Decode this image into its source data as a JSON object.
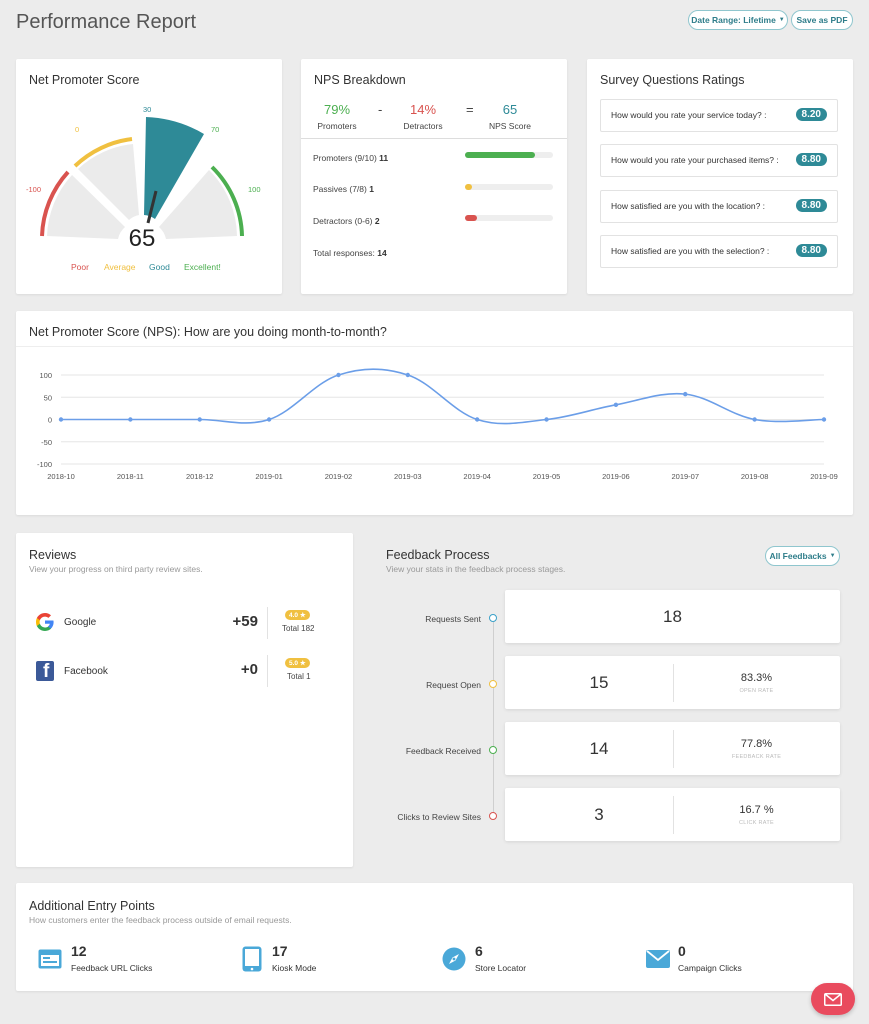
{
  "header": {
    "title": "Performance Report",
    "date_range_label": "Date Range: Lifetime",
    "save_pdf_label": "Save as PDF"
  },
  "nps_gauge": {
    "title": "Net Promoter Score",
    "score": "65",
    "score_value": 65,
    "ticks": [
      "-100",
      "0",
      "30",
      "70",
      "100"
    ],
    "legend": [
      "Poor",
      "Average",
      "Good",
      "Excellent!"
    ],
    "colors": {
      "poor": "#d9534f",
      "average": "#f0c040",
      "good": "#2e8a97",
      "excellent": "#4caf50"
    }
  },
  "nps_breakdown": {
    "title": "NPS Breakdown",
    "promoters_pct": "79%",
    "promoters_label": "Promoters",
    "minus": "-",
    "detractors_pct": "14%",
    "detractors_label": "Detractors",
    "equals": "=",
    "nps_score": "65",
    "nps_score_label": "NPS Score",
    "rows": [
      {
        "label": "Promoters (9/10)",
        "count": "11",
        "fraction": 0.79,
        "color": "#4caf50"
      },
      {
        "label": "Passives (7/8)",
        "count": "1",
        "fraction": 0.07,
        "color": "#f0c040"
      },
      {
        "label": "Detractors (0-6)",
        "count": "2",
        "fraction": 0.14,
        "color": "#d9534f"
      }
    ],
    "total_label": "Total responses:",
    "total_value": "14"
  },
  "survey": {
    "title": "Survey Questions Ratings",
    "questions": [
      {
        "q": "How would you rate your service today? :",
        "score": "8.20"
      },
      {
        "q": "How would you rate your purchased items? :",
        "score": "8.80"
      },
      {
        "q": "How satisfied are you with the location? :",
        "score": "8.80"
      },
      {
        "q": "How satisfied are you with the selection? :",
        "score": "8.80"
      }
    ]
  },
  "trend": {
    "title": "Net Promoter Score (NPS): How are you doing month-to-month?"
  },
  "chart_data": {
    "type": "line",
    "x": [
      "2018-10",
      "2018-11",
      "2018-12",
      "2019-01",
      "2019-02",
      "2019-03",
      "2019-04",
      "2019-05",
      "2019-06",
      "2019-07",
      "2019-08",
      "2019-09"
    ],
    "series": [
      {
        "values": [
          0,
          0,
          0,
          0,
          100,
          100,
          0,
          0,
          33,
          57,
          0,
          0
        ],
        "color": "#6b9ee8"
      }
    ],
    "y_ticks": [
      "100",
      "50",
      "0",
      "-50",
      "-100"
    ],
    "ylim": [
      -100,
      100
    ],
    "grid": true,
    "legend": "none"
  },
  "reviews": {
    "title": "Reviews",
    "subtitle": "View your progress on third party review sites.",
    "sites": [
      {
        "name": "Google",
        "delta": "+59",
        "rating": "4.0",
        "total": "Total 182"
      },
      {
        "name": "Facebook",
        "delta": "+0",
        "rating": "5.0",
        "total": "Total 1"
      }
    ],
    "star": "★"
  },
  "feedback": {
    "title": "Feedback Process",
    "subtitle": "View your stats in the feedback process stages.",
    "filter_label": "All Feedbacks",
    "stages": [
      {
        "label": "Requests Sent",
        "value": "18",
        "color": "#3aa0c8"
      },
      {
        "label": "Request Open",
        "value": "15",
        "rate": "83.3%",
        "rate_label": "OPEN RATE",
        "color": "#f0c040"
      },
      {
        "label": "Feedback Received",
        "value": "14",
        "rate": "77.8%",
        "rate_label": "FEEDBACK RATE",
        "color": "#4caf50"
      },
      {
        "label": "Clicks to Review Sites",
        "value": "3",
        "rate": "16.7 %",
        "rate_label": "CLICK RATE",
        "color": "#d9534f"
      }
    ]
  },
  "entry_points": {
    "title": "Additional Entry Points",
    "subtitle": "How customers enter the feedback process outside of email requests.",
    "items": [
      {
        "value": "12",
        "label": "Feedback URL Clicks",
        "icon": "browser-window-icon"
      },
      {
        "value": "17",
        "label": "Kiosk Mode",
        "icon": "tablet-icon"
      },
      {
        "value": "6",
        "label": "Store Locator",
        "icon": "compass-icon"
      },
      {
        "value": "0",
        "label": "Campaign Clicks",
        "icon": "envelope-icon"
      }
    ],
    "icon_color": "#4aa8d8"
  },
  "fab": {
    "icon": "envelope-icon",
    "color": "#e94b5e"
  }
}
